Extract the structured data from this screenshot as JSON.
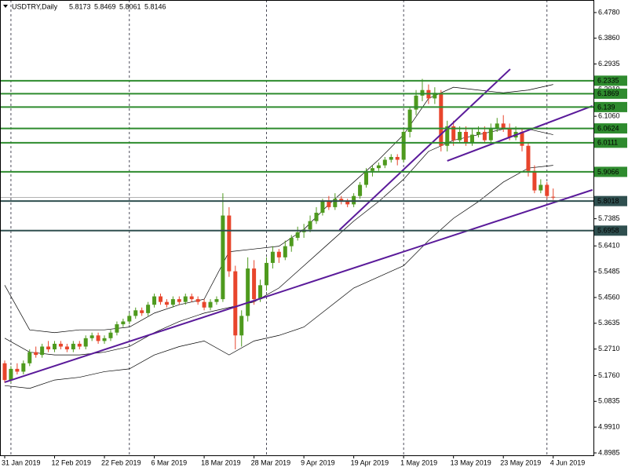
{
  "chart_data": {
    "type": "candlestick",
    "title": "USDTRY,Daily",
    "categories": [
      "31 Jan 2019",
      null,
      null,
      null,
      null,
      null,
      null,
      null,
      "12 Feb 2019",
      null,
      null,
      null,
      null,
      null,
      null,
      null,
      "22 Feb 2019",
      null,
      null,
      null,
      null,
      null,
      null,
      null,
      "6 Mar 2019",
      null,
      null,
      null,
      null,
      null,
      null,
      null,
      "18 Mar 2019",
      null,
      null,
      null,
      null,
      null,
      null,
      null,
      "28 Mar 2019",
      null,
      null,
      null,
      null,
      null,
      null,
      null,
      "9 Apr 2019",
      null,
      null,
      null,
      null,
      null,
      null,
      null,
      "19 Apr 2019",
      null,
      null,
      null,
      null,
      null,
      null,
      null,
      "1 May 2019",
      null,
      null,
      null,
      null,
      null,
      null,
      null,
      "13 May 2019",
      null,
      null,
      null,
      null,
      null,
      null,
      null,
      "23 May 2019",
      null,
      null,
      null,
      null,
      null,
      null,
      null,
      "4 Jun 2019"
    ],
    "ohlc": [
      [
        5.22,
        5.23,
        5.15,
        5.16
      ],
      [
        5.16,
        5.21,
        5.15,
        5.2
      ],
      [
        5.2,
        5.22,
        5.18,
        5.19
      ],
      [
        5.19,
        5.23,
        5.18,
        5.22
      ],
      [
        5.22,
        5.27,
        5.21,
        5.26
      ],
      [
        5.26,
        5.28,
        5.24,
        5.25
      ],
      [
        5.25,
        5.29,
        5.24,
        5.28
      ],
      [
        5.28,
        5.3,
        5.26,
        5.27
      ],
      [
        5.27,
        5.3,
        5.26,
        5.29
      ],
      [
        5.29,
        5.3,
        5.27,
        5.28
      ],
      [
        5.28,
        5.29,
        5.26,
        5.27
      ],
      [
        5.27,
        5.3,
        5.26,
        5.29
      ],
      [
        5.29,
        5.3,
        5.27,
        5.28
      ],
      [
        5.28,
        5.32,
        5.27,
        5.31
      ],
      [
        5.31,
        5.33,
        5.3,
        5.32
      ],
      [
        5.32,
        5.33,
        5.29,
        5.3
      ],
      [
        5.3,
        5.32,
        5.29,
        5.31
      ],
      [
        5.31,
        5.34,
        5.3,
        5.33
      ],
      [
        5.33,
        5.37,
        5.32,
        5.36
      ],
      [
        5.36,
        5.38,
        5.35,
        5.37
      ],
      [
        5.37,
        5.4,
        5.36,
        5.39
      ],
      [
        5.39,
        5.42,
        5.38,
        5.41
      ],
      [
        5.41,
        5.42,
        5.39,
        5.4
      ],
      [
        5.4,
        5.44,
        5.39,
        5.43
      ],
      [
        5.43,
        5.47,
        5.42,
        5.46
      ],
      [
        5.46,
        5.47,
        5.43,
        5.44
      ],
      [
        5.44,
        5.45,
        5.42,
        5.43
      ],
      [
        5.43,
        5.46,
        5.42,
        5.45
      ],
      [
        5.45,
        5.46,
        5.43,
        5.44
      ],
      [
        5.44,
        5.47,
        5.43,
        5.46
      ],
      [
        5.46,
        5.47,
        5.44,
        5.45
      ],
      [
        5.45,
        5.46,
        5.43,
        5.44
      ],
      [
        5.44,
        5.45,
        5.41,
        5.42
      ],
      [
        5.42,
        5.45,
        5.41,
        5.44
      ],
      [
        5.44,
        5.46,
        5.43,
        5.45
      ],
      [
        5.45,
        5.83,
        5.44,
        5.75
      ],
      [
        5.75,
        5.78,
        5.53,
        5.55
      ],
      [
        5.55,
        5.57,
        5.27,
        5.32
      ],
      [
        5.32,
        5.41,
        5.28,
        5.39
      ],
      [
        5.39,
        5.6,
        5.37,
        5.56
      ],
      [
        5.56,
        5.59,
        5.43,
        5.45
      ],
      [
        5.45,
        5.52,
        5.44,
        5.5
      ],
      [
        5.5,
        5.6,
        5.48,
        5.58
      ],
      [
        5.58,
        5.64,
        5.56,
        5.62
      ],
      [
        5.62,
        5.63,
        5.58,
        5.6
      ],
      [
        5.6,
        5.66,
        5.59,
        5.64
      ],
      [
        5.64,
        5.68,
        5.62,
        5.67
      ],
      [
        5.67,
        5.71,
        5.66,
        5.69
      ],
      [
        5.69,
        5.72,
        5.67,
        5.7
      ],
      [
        5.7,
        5.75,
        5.69,
        5.73
      ],
      [
        5.73,
        5.78,
        5.72,
        5.76
      ],
      [
        5.76,
        5.81,
        5.75,
        5.8
      ],
      [
        5.8,
        5.82,
        5.77,
        5.78
      ],
      [
        5.78,
        5.83,
        5.77,
        5.81
      ],
      [
        5.81,
        5.82,
        5.79,
        5.8
      ],
      [
        5.8,
        5.81,
        5.78,
        5.79
      ],
      [
        5.79,
        5.83,
        5.78,
        5.82
      ],
      [
        5.82,
        5.87,
        5.81,
        5.86
      ],
      [
        5.86,
        5.92,
        5.85,
        5.91
      ],
      [
        5.91,
        5.93,
        5.89,
        5.92
      ],
      [
        5.92,
        5.94,
        5.91,
        5.93
      ],
      [
        5.93,
        5.96,
        5.92,
        5.95
      ],
      [
        5.95,
        5.97,
        5.94,
        5.96
      ],
      [
        5.96,
        5.97,
        5.93,
        5.95
      ],
      [
        5.95,
        6.06,
        5.94,
        6.05
      ],
      [
        6.05,
        6.14,
        6.03,
        6.13
      ],
      [
        6.13,
        6.2,
        6.11,
        6.18
      ],
      [
        6.18,
        6.24,
        6.16,
        6.2
      ],
      [
        6.2,
        6.22,
        6.15,
        6.17
      ],
      [
        6.17,
        6.21,
        6.15,
        6.19
      ],
      [
        6.19,
        6.2,
        5.98,
        6.0
      ],
      [
        6.0,
        6.09,
        5.98,
        6.07
      ],
      [
        6.07,
        6.09,
        6.0,
        6.02
      ],
      [
        6.02,
        6.07,
        6.01,
        6.05
      ],
      [
        6.05,
        6.07,
        6.0,
        6.01
      ],
      [
        6.01,
        6.06,
        6.0,
        6.04
      ],
      [
        6.04,
        6.07,
        6.03,
        6.05
      ],
      [
        6.05,
        6.07,
        6.01,
        6.02
      ],
      [
        6.02,
        6.08,
        6.01,
        6.06
      ],
      [
        6.06,
        6.1,
        6.05,
        6.08
      ],
      [
        6.08,
        6.11,
        6.05,
        6.06
      ],
      [
        6.06,
        6.08,
        6.02,
        6.03
      ],
      [
        6.03,
        6.07,
        6.02,
        6.05
      ],
      [
        6.05,
        6.06,
        5.98,
        6.0
      ],
      [
        6.0,
        6.01,
        5.89,
        5.91
      ],
      [
        5.91,
        5.93,
        5.83,
        5.84
      ],
      [
        5.84,
        5.88,
        5.83,
        5.86
      ],
      [
        5.86,
        5.87,
        5.81,
        5.82
      ],
      [
        5.8173,
        5.8469,
        5.8061,
        5.8146
      ]
    ],
    "up_color": "#4e9a1e",
    "down_color": "#e8452c",
    "band_x": [
      0,
      4,
      8,
      12,
      16,
      20,
      24,
      28,
      32,
      36,
      40,
      44,
      48,
      52,
      56,
      60,
      64,
      68,
      72,
      76,
      80,
      84,
      88
    ],
    "bands": [
      {
        "values": [
          5.5,
          5.34,
          5.33,
          5.34,
          5.34,
          5.35,
          5.4,
          5.43,
          5.45,
          5.62,
          5.63,
          5.64,
          5.7,
          5.79,
          5.87,
          5.95,
          6.04,
          6.17,
          6.21,
          6.2,
          6.19,
          6.2,
          6.22
        ]
      },
      {
        "values": [
          5.31,
          5.26,
          5.25,
          5.25,
          5.26,
          5.28,
          5.33,
          5.37,
          5.4,
          5.42,
          5.44,
          5.49,
          5.57,
          5.65,
          5.73,
          5.8,
          5.88,
          5.98,
          6.02,
          6.04,
          6.06,
          6.06,
          6.04
        ]
      },
      {
        "values": [
          5.14,
          5.13,
          5.16,
          5.17,
          5.19,
          5.2,
          5.25,
          5.28,
          5.3,
          5.25,
          5.3,
          5.32,
          5.35,
          5.42,
          5.49,
          5.53,
          5.57,
          5.66,
          5.74,
          5.8,
          5.87,
          5.92,
          5.93
        ]
      }
    ],
    "trendlines": [
      {
        "x": [
          0,
          94.3
        ],
        "y": [
          5.152,
          5.842
        ]
      },
      {
        "x": [
          53.7,
          81.1
        ],
        "y": [
          5.698,
          6.275
        ]
      },
      {
        "x": [
          71,
          94.3
        ],
        "y": [
          5.946,
          6.143
        ]
      }
    ],
    "levels": [
      {
        "value": 6.2335,
        "color": "#2e8b2e"
      },
      {
        "value": 6.1869,
        "color": "#2e8b2e"
      },
      {
        "value": 6.139,
        "color": "#2e8b2e"
      },
      {
        "value": 6.0624,
        "color": "#2e8b2e"
      },
      {
        "value": 6.0111,
        "color": "#2e8b2e"
      },
      {
        "value": 5.9066,
        "color": "#2e8b2e"
      },
      {
        "value": 5.8018,
        "color": "#2f4f4f"
      },
      {
        "value": 5.6958,
        "color": "#2f4f4f"
      }
    ],
    "ylim": [
      4.89,
      6.523
    ],
    "yticks": [
      {
        "value": 6.478,
        "label": "6.4780"
      },
      {
        "value": 6.386,
        "label": "6.3860"
      },
      6.2935,
      {
        "value": 6.201,
        "label": "6.2010"
      },
      {
        "value": 6.106,
        "label": "6.1060"
      },
      5.7385,
      {
        "value": 5.641,
        "label": "5.6410"
      },
      5.5485,
      {
        "value": 5.456,
        "label": "5.4560"
      },
      5.3635,
      {
        "value": 5.271,
        "label": "5.2710"
      },
      {
        "value": 5.176,
        "label": "5.1760"
      },
      5.0835,
      {
        "value": 4.991,
        "label": "4.9910"
      },
      4.8985
    ]
  }
}
